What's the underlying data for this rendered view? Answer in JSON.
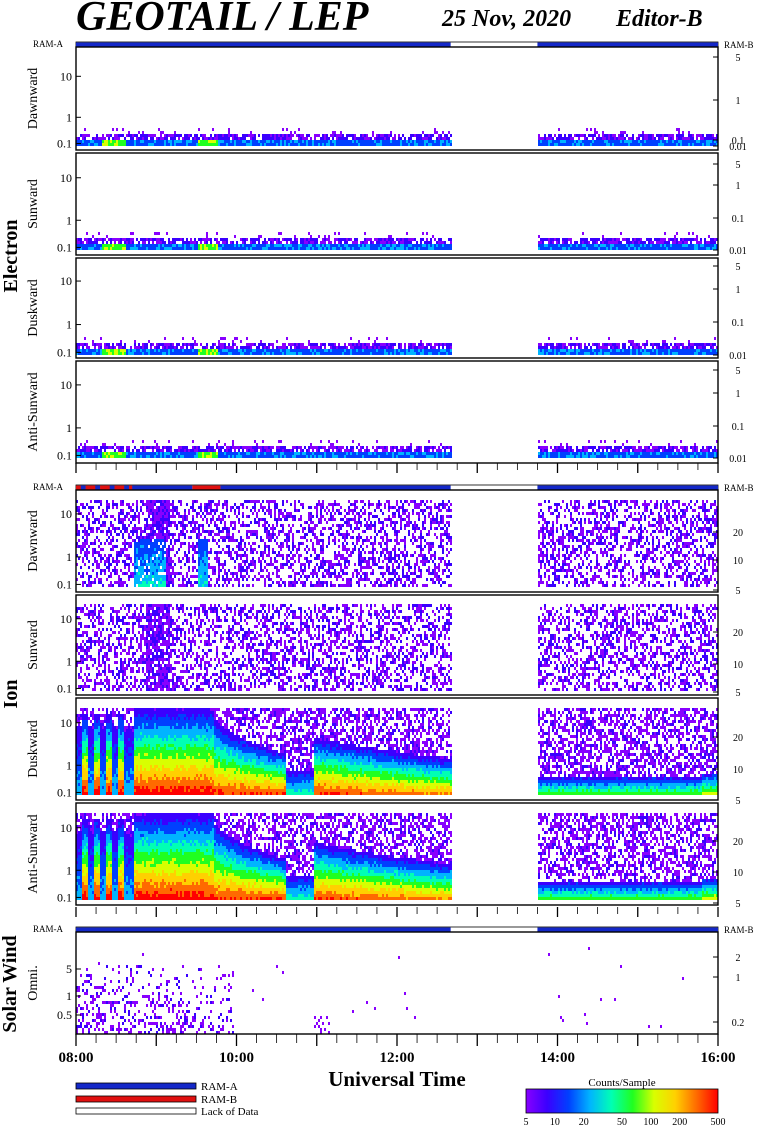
{
  "header": {
    "title": "GEOTAIL / LEP",
    "date": "25 Nov, 2020",
    "editor": "Editor-B"
  },
  "ram_labels": {
    "left": "RAM-A",
    "right": "RAM-B"
  },
  "groups": [
    {
      "label": "Electron"
    },
    {
      "label": "Ion"
    },
    {
      "label": "Solar Wind"
    }
  ],
  "x_axis": {
    "title": "Universal Time",
    "start_hour": 8,
    "end_hour": 16,
    "tick_labels": [
      "08:00",
      "10:00",
      "12:00",
      "14:00",
      "16:00"
    ]
  },
  "legend": {
    "ram_entries": [
      {
        "label": "RAM-A",
        "color": "#1428c8"
      },
      {
        "label": "RAM-B",
        "color": "#e01010"
      },
      {
        "label": "Lack of Data",
        "color": "#ffffff"
      }
    ],
    "colorbar_title": "Counts/Sample",
    "colorbar_ticks": [
      "5",
      "10",
      "20",
      "50",
      "100",
      "200",
      "500"
    ]
  },
  "chart_data": {
    "type": "heatmap",
    "x_unit": "UT hours",
    "x_range": [
      8,
      16
    ],
    "data_gap": [
      12.67,
      13.75
    ],
    "color_scale": {
      "min": 5,
      "max": 500,
      "log": true,
      "colors": [
        "#8800ff",
        "#3a00ff",
        "#0040ff",
        "#00b4ff",
        "#00ffb4",
        "#20ff20",
        "#d8ff00",
        "#ffd000",
        "#ff6a00",
        "#ff0000"
      ]
    },
    "panels": [
      {
        "group": "Electron",
        "name": "Dawnward",
        "species": "electron",
        "y_ticks_left": [
          "10",
          "1",
          "0.1"
        ],
        "y_ticks_right": [
          "5",
          "1",
          "0.1",
          "0.01"
        ],
        "ram_bar": [
          {
            "from": 8,
            "to": 12.67,
            "mode": "RAM-A"
          },
          {
            "from": 12.67,
            "to": 13.75,
            "mode": "Lack of Data"
          },
          {
            "from": 13.75,
            "to": 16,
            "mode": "RAM-A"
          }
        ]
      },
      {
        "group": "Electron",
        "name": "Sunward",
        "species": "electron",
        "y_ticks_left": [
          "10",
          "1",
          "0.1"
        ],
        "y_ticks_right": [
          "5",
          "1",
          "0.1",
          "0.01"
        ]
      },
      {
        "group": "Electron",
        "name": "Duskward",
        "species": "electron",
        "y_ticks_left": [
          "10",
          "1",
          "0.1"
        ],
        "y_ticks_right": [
          "5",
          "1",
          "0.1",
          "0.01"
        ]
      },
      {
        "group": "Electron",
        "name": "Anti-Sunward",
        "species": "electron",
        "y_ticks_left": [
          "10",
          "1",
          "0.1"
        ],
        "y_ticks_right": [
          "5",
          "1",
          "0.1",
          "0.01"
        ]
      },
      {
        "group": "Ion",
        "name": "Dawnward",
        "species": "ion_sparse",
        "y_ticks_left": [
          "10",
          "1",
          "0.1"
        ],
        "y_ticks_right": [
          "20",
          "10",
          "5"
        ],
        "ram_bar": [
          {
            "from": 8,
            "to": 8.7,
            "mode": "RAM-A/B mixed"
          },
          {
            "from": 8.7,
            "to": 9.45,
            "mode": "RAM-A"
          },
          {
            "from": 9.45,
            "to": 9.8,
            "mode": "RAM-B"
          },
          {
            "from": 9.8,
            "to": 12.67,
            "mode": "RAM-A"
          },
          {
            "from": 12.67,
            "to": 13.75,
            "mode": "Lack of Data"
          },
          {
            "from": 13.75,
            "to": 16,
            "mode": "RAM-A"
          }
        ]
      },
      {
        "group": "Ion",
        "name": "Sunward",
        "species": "ion_sparse",
        "y_ticks_left": [
          "10",
          "1",
          "0.1"
        ],
        "y_ticks_right": [
          "20",
          "10",
          "5"
        ]
      },
      {
        "group": "Ion",
        "name": "Duskward",
        "species": "ion_hot",
        "y_ticks_left": [
          "10",
          "1",
          "0.1"
        ],
        "y_ticks_right": [
          "20",
          "10",
          "5"
        ]
      },
      {
        "group": "Ion",
        "name": "Anti-Sunward",
        "species": "ion_hot",
        "y_ticks_left": [
          "10",
          "1",
          "0.1"
        ],
        "y_ticks_right": [
          "20",
          "10",
          "5"
        ]
      },
      {
        "group": "Solar Wind",
        "name": "Omni.",
        "species": "solar_wind",
        "y_ticks_left": [
          "5",
          "1",
          "0.5"
        ],
        "y_ticks_right": [
          "2",
          "1",
          "0.2"
        ],
        "ram_bar": [
          {
            "from": 8,
            "to": 12.67,
            "mode": "RAM-A"
          },
          {
            "from": 12.67,
            "to": 13.75,
            "mode": "Lack of Data"
          },
          {
            "from": 13.75,
            "to": 16,
            "mode": "RAM-A"
          }
        ]
      }
    ]
  }
}
